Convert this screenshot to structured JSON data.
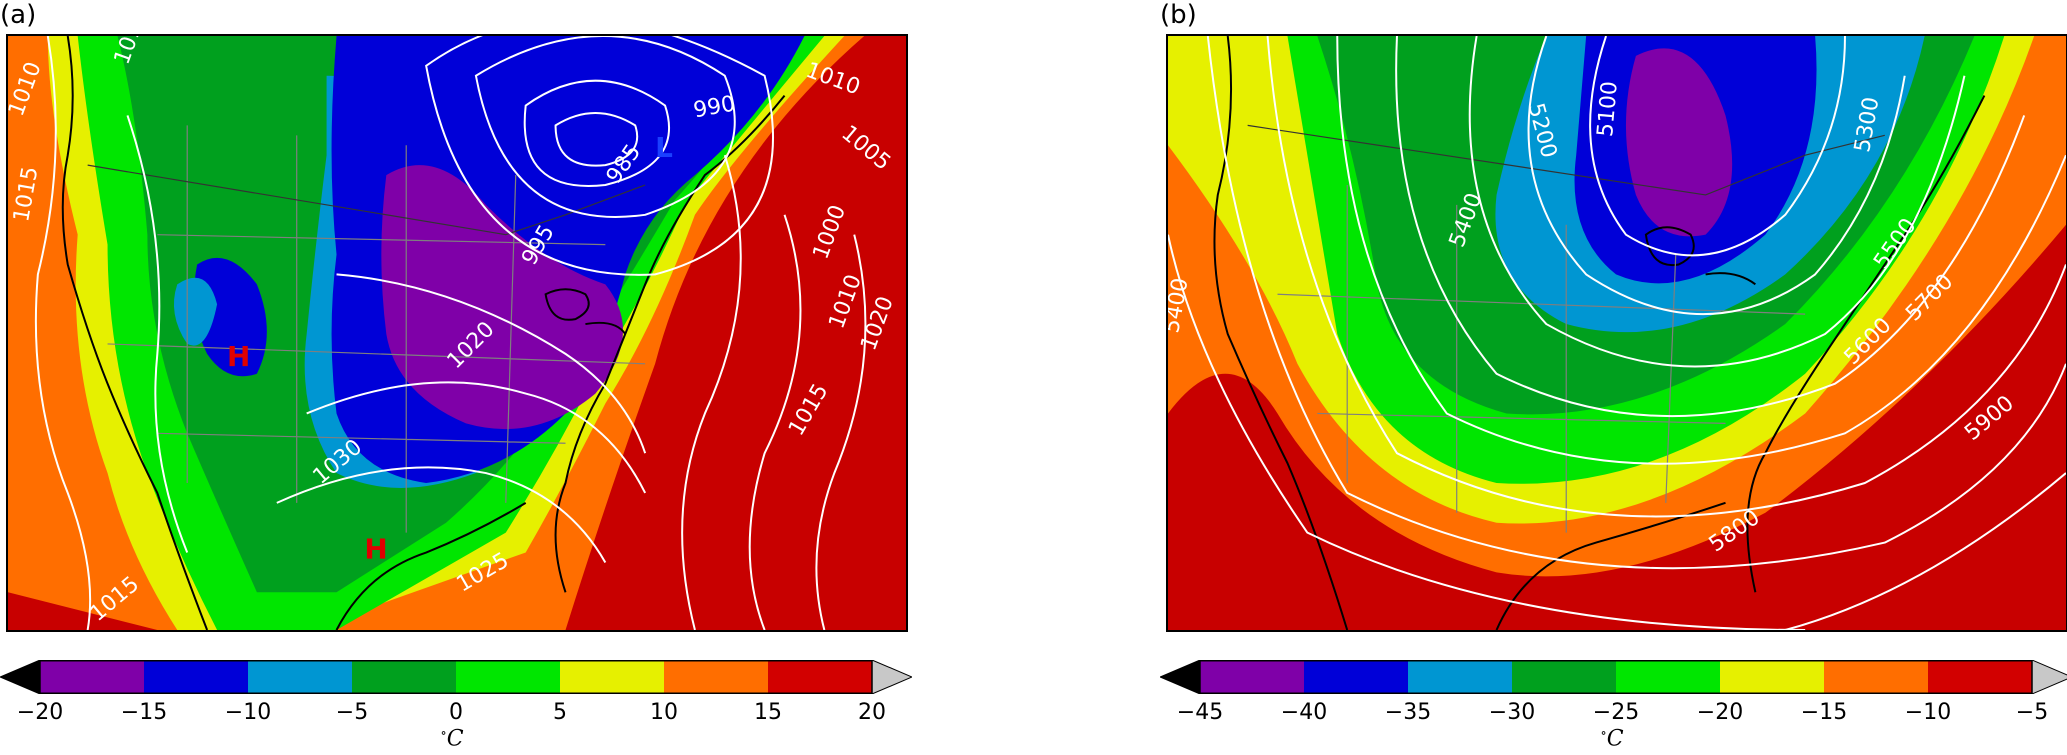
{
  "panel_a": {
    "label": "(a)",
    "unit": "C",
    "colorbar": {
      "ticks": [
        "−20",
        "−15",
        "−10",
        "−5",
        "0",
        "5",
        "10",
        "15",
        "20"
      ],
      "colors": [
        "#7f00a8",
        "#0000d8",
        "#0096d2",
        "#00a01e",
        "#00e600",
        "#e6f000",
        "#ff6e00",
        "#d20000"
      ],
      "under_color": "#000000",
      "over_color": "#c8c8c8"
    },
    "contour_labels": [
      "1010",
      "1015",
      "1010",
      "1005",
      "990",
      "985",
      "995",
      "1020",
      "1030",
      "1000",
      "1010",
      "1020",
      "1015",
      "1025",
      "1015",
      "1015"
    ],
    "pressure_centers": [
      {
        "letter": "H",
        "color": "#e00000"
      },
      {
        "letter": "H",
        "color": "#e00000"
      },
      {
        "letter": "L",
        "color": "#1a40ff"
      }
    ]
  },
  "panel_b": {
    "label": "(b)",
    "unit": "C",
    "colorbar": {
      "ticks": [
        "−45",
        "−40",
        "−35",
        "−30",
        "−25",
        "−20",
        "−15",
        "−10",
        "−5"
      ],
      "colors": [
        "#7f00a8",
        "#0000d8",
        "#0096d2",
        "#00a01e",
        "#00e600",
        "#e6f000",
        "#ff6e00",
        "#d20000"
      ],
      "under_color": "#000000",
      "over_color": "#c8c8c8"
    },
    "contour_labels": [
      "5200",
      "5100",
      "5300",
      "5400",
      "5500",
      "5700",
      "5600",
      "5900",
      "5800",
      "5400"
    ]
  },
  "chart_data": [
    {
      "type": "heatmap",
      "title": "(a)",
      "variable_units": "°C",
      "color_levels": [
        -20,
        -15,
        -10,
        -5,
        0,
        5,
        10,
        15,
        20
      ],
      "contour_values_shown": [
        985,
        990,
        995,
        1000,
        1005,
        1010,
        1015,
        1020,
        1025,
        1030
      ],
      "high_centers": 2,
      "low_centers": 1
    },
    {
      "type": "heatmap",
      "title": "(b)",
      "variable_units": "°C",
      "color_levels": [
        -45,
        -40,
        -35,
        -30,
        -25,
        -20,
        -15,
        -10,
        -5
      ],
      "contour_values_shown": [
        5100,
        5200,
        5300,
        5400,
        5500,
        5600,
        5700,
        5800,
        5900
      ]
    }
  ]
}
